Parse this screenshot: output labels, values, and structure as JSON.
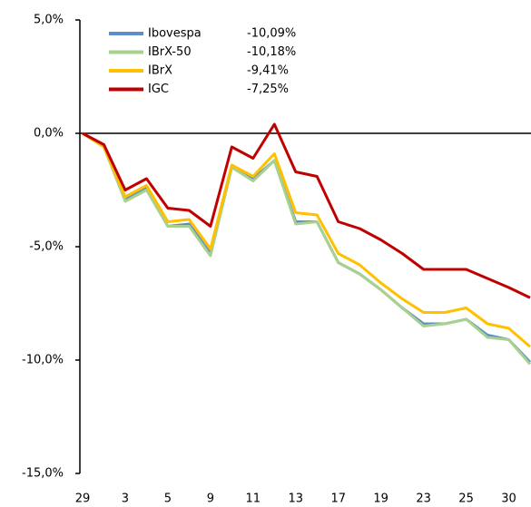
{
  "chart_data": {
    "type": "line",
    "categories": [
      "29",
      null,
      "3",
      null,
      "5",
      null,
      "9",
      null,
      "11",
      null,
      "13",
      null,
      "17",
      null,
      "19",
      null,
      "23",
      null,
      "25",
      null,
      "30",
      null
    ],
    "series": [
      {
        "name": "Ibovespa",
        "label": "-10,09%",
        "color": "#5b8fcc",
        "values": [
          0,
          -0.6,
          -2.9,
          -2.4,
          -4.1,
          -4.0,
          -5.3,
          -1.5,
          -2.0,
          -1.2,
          -3.9,
          -3.9,
          -5.7,
          -6.2,
          -6.9,
          -7.7,
          -8.4,
          -8.4,
          -8.2,
          -8.9,
          -9.1,
          -10.09
        ]
      },
      {
        "name": "IBrX-50",
        "label": "-10,18%",
        "color": "#a9d18e",
        "values": [
          0,
          -0.6,
          -3.0,
          -2.5,
          -4.1,
          -4.1,
          -5.4,
          -1.5,
          -2.1,
          -1.2,
          -4.0,
          -3.9,
          -5.7,
          -6.2,
          -6.9,
          -7.7,
          -8.5,
          -8.4,
          -8.2,
          -9.0,
          -9.1,
          -10.18
        ]
      },
      {
        "name": "IBrX",
        "label": "-9,41%",
        "color": "#ffc000",
        "values": [
          0,
          -0.6,
          -2.8,
          -2.3,
          -3.9,
          -3.8,
          -5.1,
          -1.4,
          -1.9,
          -0.9,
          -3.5,
          -3.6,
          -5.3,
          -5.8,
          -6.6,
          -7.3,
          -7.9,
          -7.9,
          -7.7,
          -8.4,
          -8.6,
          -9.41
        ]
      },
      {
        "name": "IGC",
        "label": "-7,25%",
        "color": "#c00000",
        "values": [
          0,
          -0.5,
          -2.5,
          -2.0,
          -3.3,
          -3.4,
          -4.1,
          -0.6,
          -1.1,
          0.4,
          -1.7,
          -1.9,
          -3.9,
          -4.2,
          -4.7,
          -5.3,
          -6.0,
          -6.0,
          -6.0,
          -6.4,
          -6.8,
          -7.25
        ]
      }
    ],
    "ylim": [
      -15,
      5
    ],
    "yticks": [
      {
        "value": 5,
        "label": "5,0%"
      },
      {
        "value": 0,
        "label": "0,0%"
      },
      {
        "value": -5,
        "label": "-5,0%"
      },
      {
        "value": -10,
        "label": "-10,0%"
      },
      {
        "value": -15,
        "label": "-15,0%"
      }
    ]
  }
}
